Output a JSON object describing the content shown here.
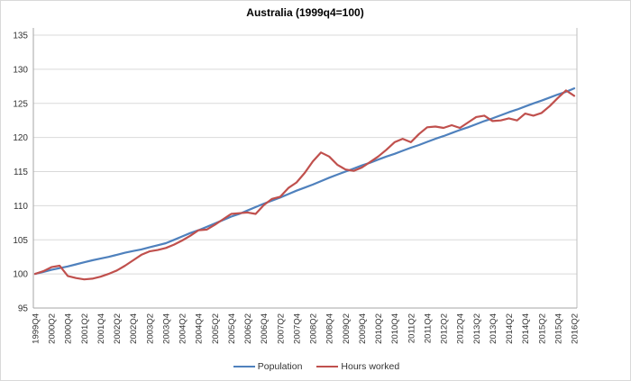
{
  "window": {
    "background": "#ffffff",
    "border_color": "#d9d9d9"
  },
  "chart_data": {
    "type": "line",
    "title": "Australia (1999q4=100)",
    "xlabel": "",
    "ylabel": "",
    "ylim": [
      95,
      135
    ],
    "ytick_step": 5,
    "ytick_labels": [
      "95",
      "100",
      "105",
      "110",
      "115",
      "120",
      "125",
      "130",
      "135"
    ],
    "grid": "horizontal-only",
    "legend_position": "bottom-center",
    "x_tick_every": 2,
    "x": [
      "1999Q4",
      "2000Q1",
      "2000Q2",
      "2000Q3",
      "2000Q4",
      "2001Q1",
      "2001Q2",
      "2001Q3",
      "2001Q4",
      "2002Q1",
      "2002Q2",
      "2002Q3",
      "2002Q4",
      "2003Q1",
      "2003Q2",
      "2003Q3",
      "2003Q4",
      "2004Q1",
      "2004Q2",
      "2004Q3",
      "2004Q4",
      "2005Q1",
      "2005Q2",
      "2005Q3",
      "2005Q4",
      "2006Q1",
      "2006Q2",
      "2006Q3",
      "2006Q4",
      "2007Q1",
      "2007Q2",
      "2007Q3",
      "2007Q4",
      "2008Q1",
      "2008Q2",
      "2008Q3",
      "2008Q4",
      "2009Q1",
      "2009Q2",
      "2009Q3",
      "2009Q4",
      "2010Q1",
      "2010Q2",
      "2010Q3",
      "2010Q4",
      "2011Q1",
      "2011Q2",
      "2011Q3",
      "2011Q4",
      "2012Q1",
      "2012Q2",
      "2012Q3",
      "2012Q4",
      "2013Q1",
      "2013Q2",
      "2013Q3",
      "2013Q4",
      "2014Q1",
      "2014Q2",
      "2014Q3",
      "2014Q4",
      "2015Q1",
      "2015Q2",
      "2015Q3",
      "2015Q4",
      "2016Q1",
      "2016Q2"
    ],
    "series": [
      {
        "name": "Population",
        "color": "#4F81BD",
        "values": [
          100.0,
          100.3,
          100.6,
          100.85,
          101.1,
          101.4,
          101.7,
          102.0,
          102.25,
          102.5,
          102.8,
          103.1,
          103.35,
          103.6,
          103.9,
          104.2,
          104.5,
          105.0,
          105.5,
          106.0,
          106.4,
          106.9,
          107.4,
          107.9,
          108.4,
          108.8,
          109.3,
          109.8,
          110.3,
          110.75,
          111.2,
          111.7,
          112.2,
          112.65,
          113.1,
          113.6,
          114.1,
          114.55,
          115.0,
          115.45,
          115.9,
          116.3,
          116.75,
          117.2,
          117.6,
          118.05,
          118.5,
          118.9,
          119.35,
          119.8,
          120.2,
          120.65,
          121.1,
          121.5,
          121.95,
          122.4,
          122.8,
          123.25,
          123.7,
          124.1,
          124.55,
          125.0,
          125.4,
          125.85,
          126.3,
          126.7,
          127.2
        ]
      },
      {
        "name": "Hours worked",
        "color": "#C0504D",
        "values": [
          100.0,
          100.4,
          101.0,
          101.2,
          99.7,
          99.4,
          99.2,
          99.3,
          99.6,
          100.0,
          100.5,
          101.2,
          102.0,
          102.8,
          103.3,
          103.5,
          103.8,
          104.3,
          104.9,
          105.6,
          106.4,
          106.5,
          107.2,
          108.0,
          108.8,
          108.9,
          109.0,
          108.8,
          110.1,
          111.0,
          111.3,
          112.6,
          113.4,
          114.8,
          116.5,
          117.8,
          117.2,
          116.0,
          115.3,
          115.1,
          115.6,
          116.4,
          117.2,
          118.2,
          119.3,
          119.8,
          119.3,
          120.5,
          121.5,
          121.6,
          121.4,
          121.8,
          121.4,
          122.2,
          123.0,
          123.2,
          122.4,
          122.5,
          122.8,
          122.5,
          123.5,
          123.2,
          123.6,
          124.6,
          125.8,
          126.9,
          126.1
        ]
      }
    ],
    "style": {
      "gridline_color": "#d9d9d9",
      "axis_line_color": "#a6a6a6",
      "plot_border_color": "#bfbfbf",
      "tick_text_color": "#333333",
      "title_color": "#000000",
      "line_width": 2.2
    }
  }
}
